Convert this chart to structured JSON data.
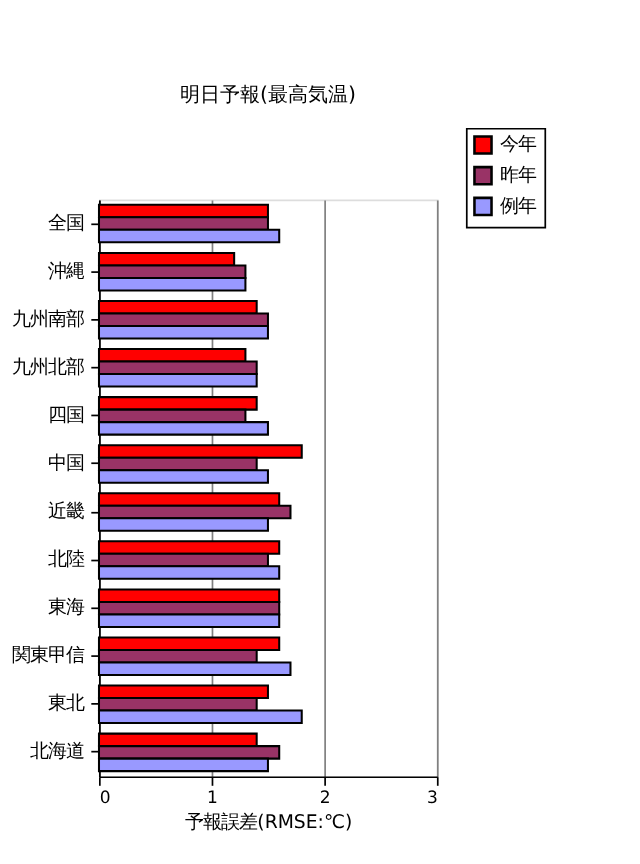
{
  "chart_data": {
    "type": "bar",
    "orientation": "horizontal",
    "title": "明日予報(最高気温)",
    "xlabel": "予報誤差(RMSE:℃)",
    "categories": [
      "全国",
      "沖縄",
      "九州南部",
      "九州北部",
      "四国",
      "中国",
      "近畿",
      "北陸",
      "東海",
      "関東甲信",
      "東北",
      "北海道"
    ],
    "series": [
      {
        "name": "今年",
        "color": "#ff0000",
        "values": [
          1.5,
          1.2,
          1.4,
          1.3,
          1.4,
          1.8,
          1.6,
          1.6,
          1.6,
          1.6,
          1.5,
          1.4
        ]
      },
      {
        "name": "昨年",
        "color": "#993366",
        "values": [
          1.5,
          1.3,
          1.5,
          1.4,
          1.3,
          1.4,
          1.7,
          1.5,
          1.6,
          1.4,
          1.4,
          1.6
        ]
      },
      {
        "name": "例年",
        "color": "#9999ff",
        "values": [
          1.6,
          1.3,
          1.5,
          1.4,
          1.5,
          1.5,
          1.5,
          1.6,
          1.6,
          1.7,
          1.8,
          1.5
        ]
      }
    ],
    "xlim": [
      0,
      3
    ],
    "xticks": [
      0,
      1,
      2,
      3
    ],
    "grid": "x",
    "legend": "top right"
  }
}
